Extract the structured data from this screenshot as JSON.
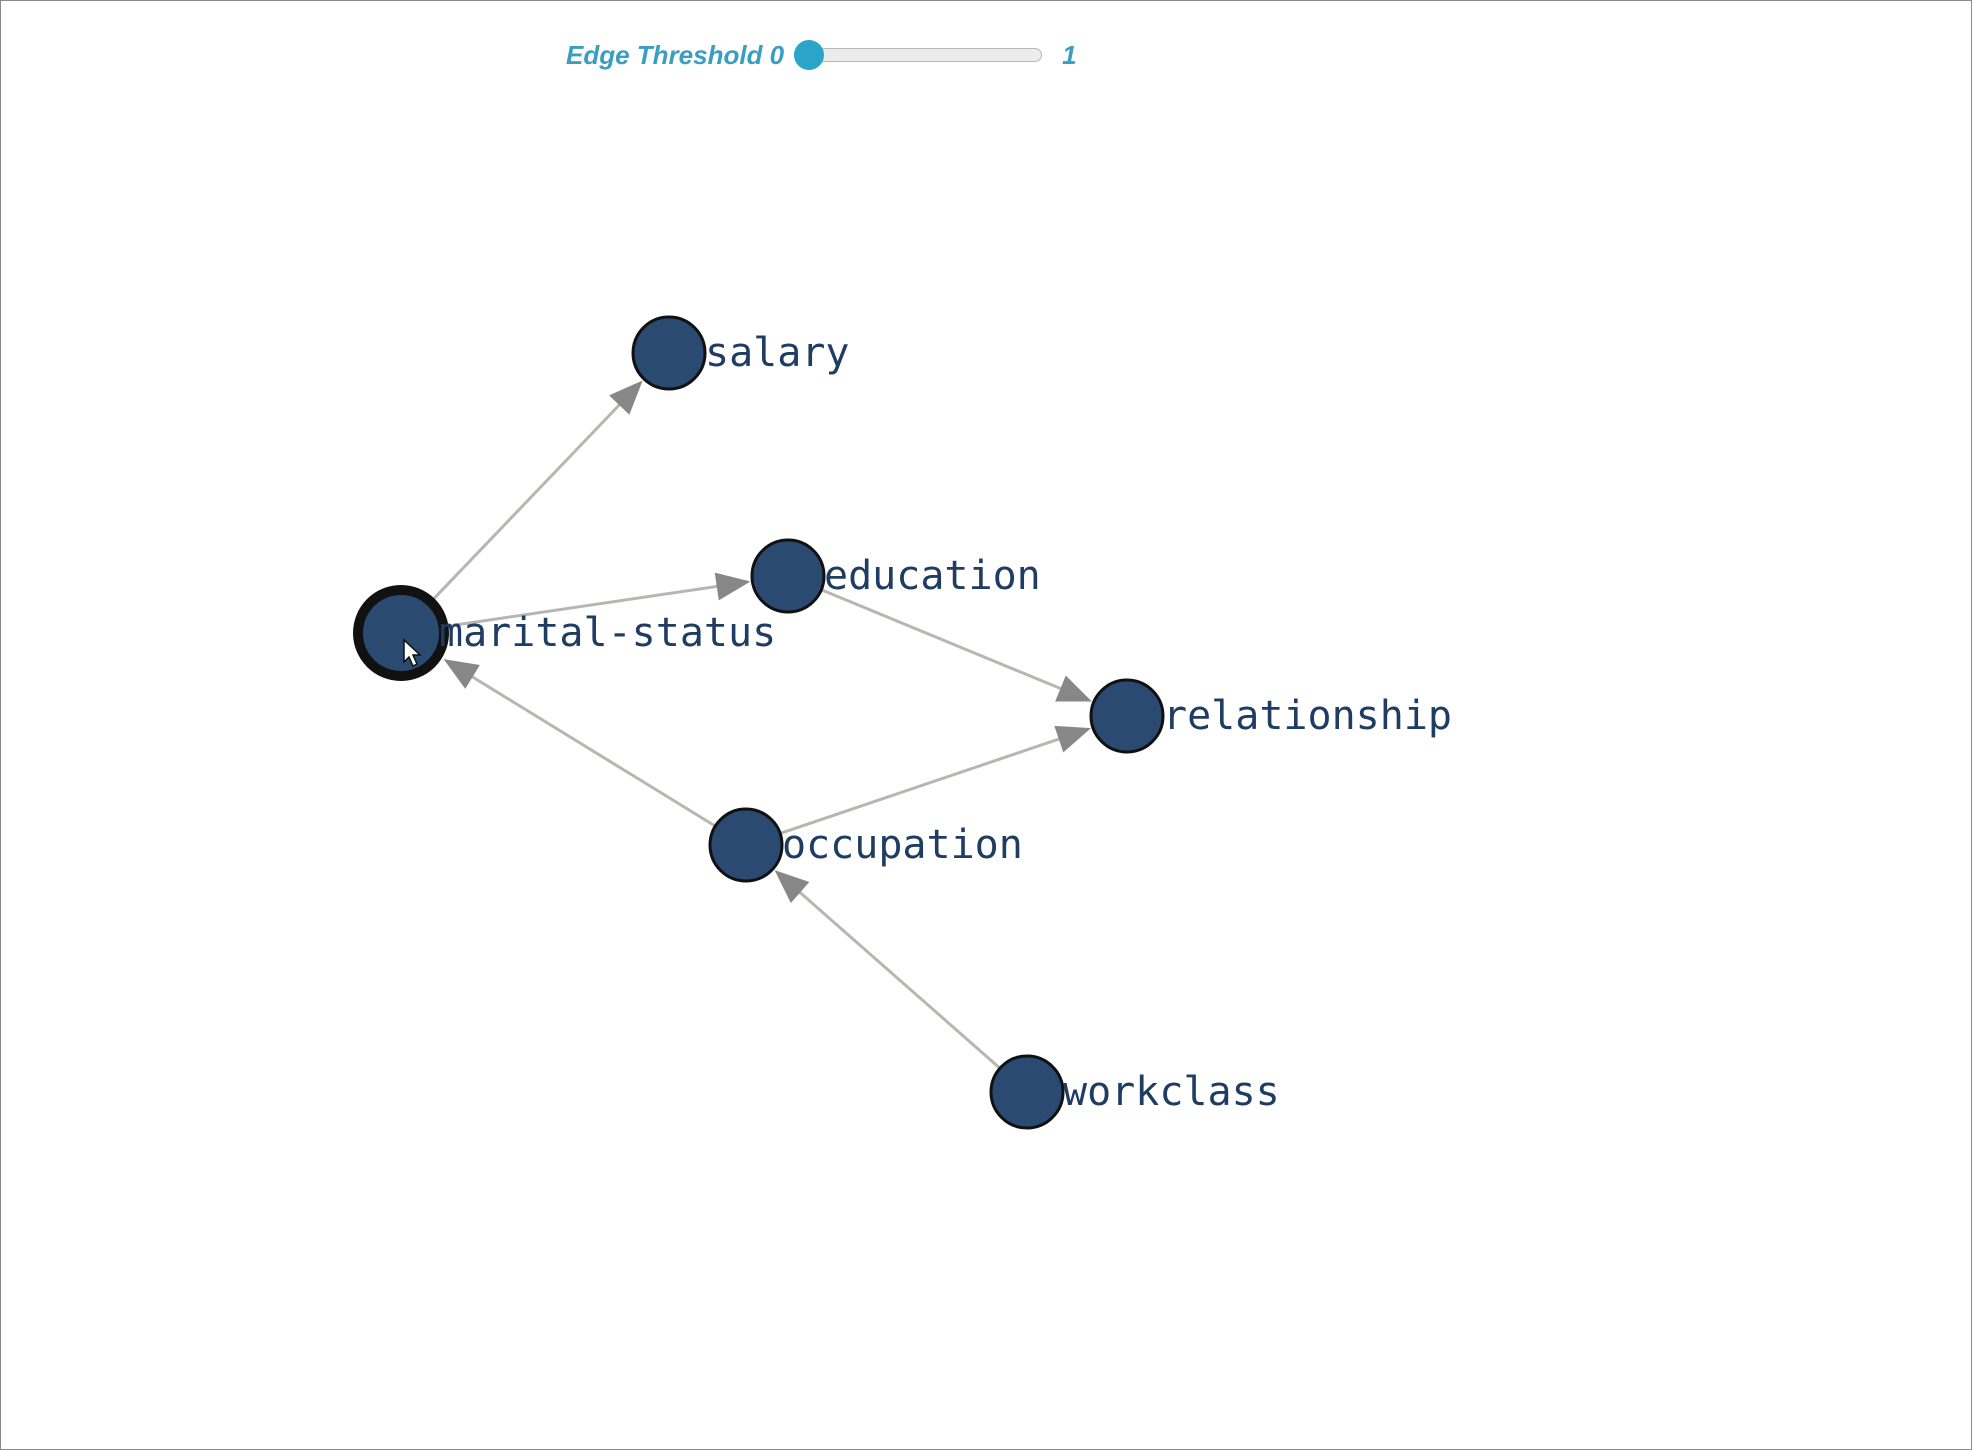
{
  "controls": {
    "threshold_label": "Edge Threshold 0",
    "threshold_max_label": "1",
    "threshold_value": 0
  },
  "colors": {
    "node_fill": "#2b4a72",
    "node_stroke": "#111111",
    "edge": "#b8b6b2",
    "arrow": "#878787",
    "label": "#1f3d63",
    "slider_accent": "#2aa4c8"
  },
  "graph": {
    "nodes": [
      {
        "id": "salary",
        "label": "salary",
        "selected": false
      },
      {
        "id": "education",
        "label": "education",
        "selected": false
      },
      {
        "id": "marital-status",
        "label": "marital-status",
        "selected": true
      },
      {
        "id": "relationship",
        "label": "relationship",
        "selected": false
      },
      {
        "id": "occupation",
        "label": "occupation",
        "selected": false
      },
      {
        "id": "workclass",
        "label": "workclass",
        "selected": false
      }
    ],
    "edges": [
      {
        "from": "marital-status",
        "to": "salary"
      },
      {
        "from": "marital-status",
        "to": "education"
      },
      {
        "from": "education",
        "to": "relationship"
      },
      {
        "from": "occupation",
        "to": "relationship"
      },
      {
        "from": "occupation",
        "to": "marital-status"
      },
      {
        "from": "workclass",
        "to": "occupation"
      }
    ]
  }
}
